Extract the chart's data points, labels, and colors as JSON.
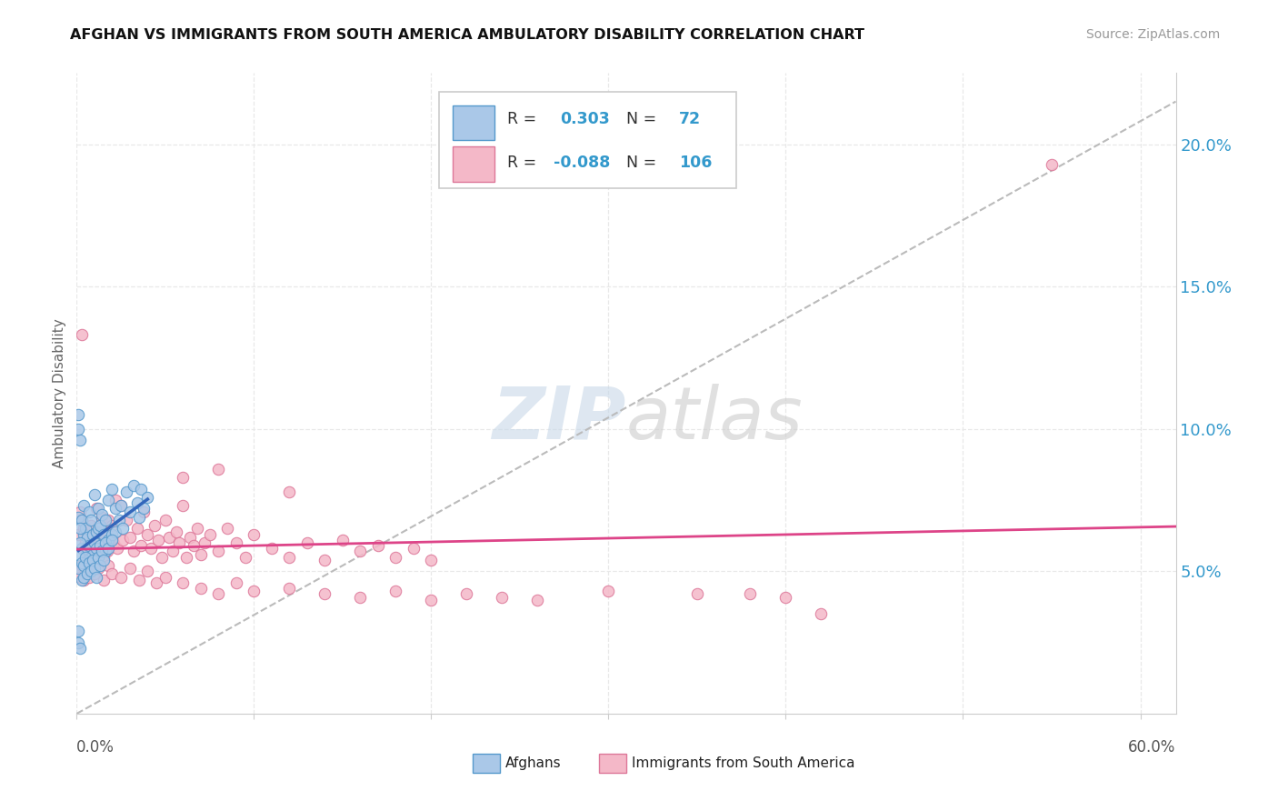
{
  "title": "AFGHAN VS IMMIGRANTS FROM SOUTH AMERICA AMBULATORY DISABILITY CORRELATION CHART",
  "source": "Source: ZipAtlas.com",
  "ylabel": "Ambulatory Disability",
  "legend_label1": "Afghans",
  "legend_label2": "Immigrants from South America",
  "r1": 0.303,
  "n1": 72,
  "r2": -0.088,
  "n2": 106,
  "blue_color": "#aac8e8",
  "pink_color": "#f4b8c8",
  "blue_edge_color": "#5599cc",
  "pink_edge_color": "#dd7799",
  "blue_line_color": "#3366bb",
  "pink_line_color": "#dd4488",
  "blue_scatter": [
    [
      0.001,
      0.069
    ],
    [
      0.002,
      0.096
    ],
    [
      0.003,
      0.068
    ],
    [
      0.003,
      0.058
    ],
    [
      0.004,
      0.073
    ],
    [
      0.004,
      0.063
    ],
    [
      0.005,
      0.058
    ],
    [
      0.005,
      0.065
    ],
    [
      0.006,
      0.062
    ],
    [
      0.006,
      0.054
    ],
    [
      0.007,
      0.071
    ],
    [
      0.007,
      0.059
    ],
    [
      0.008,
      0.068
    ],
    [
      0.008,
      0.055
    ],
    [
      0.009,
      0.063
    ],
    [
      0.009,
      0.056
    ],
    [
      0.01,
      0.077
    ],
    [
      0.01,
      0.06
    ],
    [
      0.011,
      0.058
    ],
    [
      0.011,
      0.064
    ],
    [
      0.012,
      0.072
    ],
    [
      0.012,
      0.065
    ],
    [
      0.013,
      0.066
    ],
    [
      0.013,
      0.059
    ],
    [
      0.014,
      0.07
    ],
    [
      0.015,
      0.063
    ],
    [
      0.016,
      0.068
    ],
    [
      0.016,
      0.057
    ],
    [
      0.018,
      0.075
    ],
    [
      0.018,
      0.061
    ],
    [
      0.02,
      0.079
    ],
    [
      0.02,
      0.063
    ],
    [
      0.022,
      0.072
    ],
    [
      0.022,
      0.064
    ],
    [
      0.024,
      0.068
    ],
    [
      0.025,
      0.073
    ],
    [
      0.026,
      0.065
    ],
    [
      0.028,
      0.078
    ],
    [
      0.03,
      0.071
    ],
    [
      0.032,
      0.08
    ],
    [
      0.034,
      0.074
    ],
    [
      0.035,
      0.069
    ],
    [
      0.036,
      0.079
    ],
    [
      0.038,
      0.072
    ],
    [
      0.04,
      0.076
    ],
    [
      0.001,
      0.056
    ],
    [
      0.001,
      0.051
    ],
    [
      0.002,
      0.06
    ],
    [
      0.002,
      0.065
    ],
    [
      0.003,
      0.053
    ],
    [
      0.003,
      0.047
    ],
    [
      0.004,
      0.052
    ],
    [
      0.004,
      0.048
    ],
    [
      0.005,
      0.055
    ],
    [
      0.006,
      0.049
    ],
    [
      0.007,
      0.053
    ],
    [
      0.008,
      0.05
    ],
    [
      0.009,
      0.054
    ],
    [
      0.01,
      0.051
    ],
    [
      0.011,
      0.048
    ],
    [
      0.012,
      0.055
    ],
    [
      0.013,
      0.052
    ],
    [
      0.014,
      0.057
    ],
    [
      0.015,
      0.054
    ],
    [
      0.016,
      0.06
    ],
    [
      0.018,
      0.058
    ],
    [
      0.02,
      0.061
    ],
    [
      0.001,
      0.029
    ],
    [
      0.001,
      0.025
    ],
    [
      0.002,
      0.023
    ],
    [
      0.001,
      0.105
    ],
    [
      0.001,
      0.1
    ]
  ],
  "pink_scatter": [
    [
      0.001,
      0.063
    ],
    [
      0.002,
      0.071
    ],
    [
      0.003,
      0.068
    ],
    [
      0.004,
      0.065
    ],
    [
      0.005,
      0.06
    ],
    [
      0.006,
      0.063
    ],
    [
      0.007,
      0.058
    ],
    [
      0.008,
      0.066
    ],
    [
      0.009,
      0.062
    ],
    [
      0.01,
      0.059
    ],
    [
      0.011,
      0.072
    ],
    [
      0.012,
      0.064
    ],
    [
      0.013,
      0.061
    ],
    [
      0.014,
      0.069
    ],
    [
      0.015,
      0.055
    ],
    [
      0.016,
      0.063
    ],
    [
      0.017,
      0.057
    ],
    [
      0.018,
      0.068
    ],
    [
      0.019,
      0.061
    ],
    [
      0.02,
      0.066
    ],
    [
      0.021,
      0.06
    ],
    [
      0.022,
      0.075
    ],
    [
      0.023,
      0.058
    ],
    [
      0.025,
      0.073
    ],
    [
      0.026,
      0.061
    ],
    [
      0.028,
      0.068
    ],
    [
      0.03,
      0.062
    ],
    [
      0.032,
      0.057
    ],
    [
      0.034,
      0.065
    ],
    [
      0.036,
      0.059
    ],
    [
      0.038,
      0.071
    ],
    [
      0.04,
      0.063
    ],
    [
      0.042,
      0.058
    ],
    [
      0.044,
      0.066
    ],
    [
      0.046,
      0.061
    ],
    [
      0.048,
      0.055
    ],
    [
      0.05,
      0.068
    ],
    [
      0.052,
      0.062
    ],
    [
      0.054,
      0.057
    ],
    [
      0.056,
      0.064
    ],
    [
      0.058,
      0.06
    ],
    [
      0.06,
      0.073
    ],
    [
      0.062,
      0.055
    ],
    [
      0.064,
      0.062
    ],
    [
      0.066,
      0.059
    ],
    [
      0.068,
      0.065
    ],
    [
      0.07,
      0.056
    ],
    [
      0.072,
      0.06
    ],
    [
      0.075,
      0.063
    ],
    [
      0.08,
      0.057
    ],
    [
      0.085,
      0.065
    ],
    [
      0.09,
      0.06
    ],
    [
      0.095,
      0.055
    ],
    [
      0.1,
      0.063
    ],
    [
      0.11,
      0.058
    ],
    [
      0.12,
      0.055
    ],
    [
      0.13,
      0.06
    ],
    [
      0.14,
      0.054
    ],
    [
      0.15,
      0.061
    ],
    [
      0.16,
      0.057
    ],
    [
      0.17,
      0.059
    ],
    [
      0.18,
      0.055
    ],
    [
      0.19,
      0.058
    ],
    [
      0.2,
      0.054
    ],
    [
      0.001,
      0.05
    ],
    [
      0.002,
      0.048
    ],
    [
      0.003,
      0.052
    ],
    [
      0.004,
      0.047
    ],
    [
      0.005,
      0.05
    ],
    [
      0.006,
      0.055
    ],
    [
      0.007,
      0.048
    ],
    [
      0.008,
      0.053
    ],
    [
      0.01,
      0.049
    ],
    [
      0.012,
      0.051
    ],
    [
      0.015,
      0.047
    ],
    [
      0.018,
      0.052
    ],
    [
      0.02,
      0.049
    ],
    [
      0.025,
      0.048
    ],
    [
      0.03,
      0.051
    ],
    [
      0.035,
      0.047
    ],
    [
      0.04,
      0.05
    ],
    [
      0.045,
      0.046
    ],
    [
      0.05,
      0.048
    ],
    [
      0.06,
      0.046
    ],
    [
      0.07,
      0.044
    ],
    [
      0.08,
      0.042
    ],
    [
      0.09,
      0.046
    ],
    [
      0.1,
      0.043
    ],
    [
      0.12,
      0.044
    ],
    [
      0.14,
      0.042
    ],
    [
      0.16,
      0.041
    ],
    [
      0.18,
      0.043
    ],
    [
      0.2,
      0.04
    ],
    [
      0.22,
      0.042
    ],
    [
      0.24,
      0.041
    ],
    [
      0.26,
      0.04
    ],
    [
      0.3,
      0.043
    ],
    [
      0.35,
      0.042
    ],
    [
      0.4,
      0.041
    ],
    [
      0.55,
      0.193
    ],
    [
      0.003,
      0.133
    ],
    [
      0.08,
      0.086
    ],
    [
      0.06,
      0.083
    ],
    [
      0.12,
      0.078
    ],
    [
      0.38,
      0.042
    ],
    [
      0.42,
      0.035
    ]
  ],
  "xmin": 0.0,
  "xmax": 0.62,
  "ymin": 0.0,
  "ymax": 0.225,
  "yticks": [
    0.05,
    0.1,
    0.15,
    0.2
  ],
  "ytick_labels": [
    "5.0%",
    "10.0%",
    "15.0%",
    "20.0%"
  ],
  "xticks": [
    0.0,
    0.1,
    0.2,
    0.3,
    0.4,
    0.5,
    0.6
  ],
  "grid_color": "#e8e8e8",
  "spine_color": "#cccccc"
}
